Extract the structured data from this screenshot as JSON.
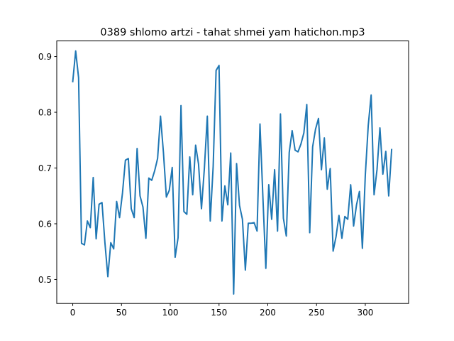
{
  "chart_data": {
    "type": "line",
    "title": "0389 shlomo artzi - tahat shmei yam hatichon.mp3",
    "xlabel": "",
    "ylabel": "",
    "xlim": [
      -16.4,
      344.4
    ],
    "ylim": [
      0.457,
      0.928
    ],
    "xticks": [
      0,
      50,
      100,
      150,
      200,
      250,
      300
    ],
    "xtick_labels": [
      "0",
      "50",
      "100",
      "150",
      "200",
      "250",
      "300"
    ],
    "yticks": [
      0.5,
      0.6,
      0.7,
      0.8,
      0.9
    ],
    "ytick_labels": [
      "0.5",
      "0.6",
      "0.7",
      "0.8",
      "0.9"
    ],
    "grid": false,
    "colors": {
      "series": "#1f77b4"
    },
    "series": [
      {
        "x": [
          0,
          3,
          6,
          9,
          12,
          15,
          18,
          21,
          24,
          27,
          30,
          33,
          36,
          39,
          42,
          45,
          48,
          51,
          54,
          57,
          60,
          63,
          66,
          69,
          72,
          75,
          78,
          81,
          84,
          87,
          90,
          93,
          96,
          99,
          102,
          105,
          108,
          111,
          114,
          117,
          120,
          123,
          126,
          129,
          132,
          135,
          138,
          141,
          144,
          147,
          150,
          153,
          156,
          159,
          162,
          165,
          168,
          171,
          174,
          177,
          180,
          183,
          186,
          189,
          192,
          195,
          198,
          201,
          204,
          207,
          210,
          213,
          216,
          219,
          222,
          225,
          228,
          231,
          234,
          237,
          240,
          243,
          246,
          249,
          252,
          255,
          258,
          261,
          264,
          267,
          270,
          273,
          276,
          279,
          282,
          285,
          288,
          291,
          294,
          297,
          300,
          303,
          306,
          309,
          312,
          315,
          318,
          321,
          324,
          327
        ],
        "values": [
          0.855,
          0.91,
          0.862,
          0.565,
          0.562,
          0.605,
          0.593,
          0.683,
          0.573,
          0.635,
          0.638,
          0.566,
          0.505,
          0.566,
          0.555,
          0.64,
          0.611,
          0.655,
          0.714,
          0.717,
          0.627,
          0.611,
          0.735,
          0.65,
          0.63,
          0.574,
          0.682,
          0.678,
          0.695,
          0.717,
          0.793,
          0.728,
          0.648,
          0.66,
          0.701,
          0.54,
          0.575,
          0.812,
          0.622,
          0.617,
          0.72,
          0.652,
          0.741,
          0.707,
          0.627,
          0.7,
          0.793,
          0.605,
          0.703,
          0.875,
          0.884,
          0.605,
          0.668,
          0.634,
          0.727,
          0.474,
          0.708,
          0.633,
          0.608,
          0.517,
          0.601,
          0.601,
          0.602,
          0.587,
          0.779,
          0.647,
          0.52,
          0.67,
          0.608,
          0.697,
          0.587,
          0.797,
          0.61,
          0.578,
          0.728,
          0.767,
          0.732,
          0.729,
          0.743,
          0.763,
          0.814,
          0.584,
          0.738,
          0.77,
          0.789,
          0.697,
          0.754,
          0.662,
          0.699,
          0.551,
          0.577,
          0.615,
          0.574,
          0.613,
          0.608,
          0.67,
          0.596,
          0.634,
          0.658,
          0.556,
          0.687,
          0.776,
          0.831,
          0.652,
          0.697,
          0.772,
          0.689,
          0.73,
          0.65,
          0.733
        ]
      }
    ]
  }
}
